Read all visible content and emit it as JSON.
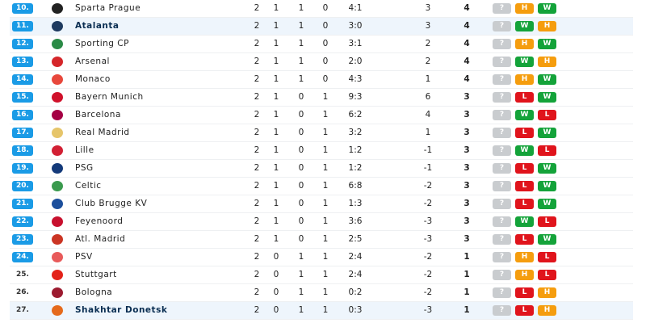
{
  "colors": {
    "rank_badge": "#1a9be6",
    "W": "#14a33a",
    "L": "#e0141c",
    "H": "#f59d0e",
    "?": "#c9cccf",
    "highlight": "#eef5fc"
  },
  "rows": [
    {
      "rank": "10.",
      "team": "Sparta Prague",
      "mp": "2",
      "w": "1",
      "d": "1",
      "l": "0",
      "goals": "4:1",
      "gd": "3",
      "pts": "4",
      "form": [
        "?",
        "H",
        "W"
      ],
      "logo": "#222222"
    },
    {
      "rank": "11.",
      "team": "Atalanta",
      "mp": "2",
      "w": "1",
      "d": "1",
      "l": "0",
      "goals": "3:0",
      "gd": "3",
      "pts": "4",
      "form": [
        "?",
        "W",
        "H"
      ],
      "logo": "#1e3a5f",
      "highlight": true
    },
    {
      "rank": "12.",
      "team": "Sporting CP",
      "mp": "2",
      "w": "1",
      "d": "1",
      "l": "0",
      "goals": "3:1",
      "gd": "2",
      "pts": "4",
      "form": [
        "?",
        "H",
        "W"
      ],
      "logo": "#2a8a46"
    },
    {
      "rank": "13.",
      "team": "Arsenal",
      "mp": "2",
      "w": "1",
      "d": "1",
      "l": "0",
      "goals": "2:0",
      "gd": "2",
      "pts": "4",
      "form": [
        "?",
        "W",
        "H"
      ],
      "logo": "#d5262a"
    },
    {
      "rank": "14.",
      "team": "Monaco",
      "mp": "2",
      "w": "1",
      "d": "1",
      "l": "0",
      "goals": "4:3",
      "gd": "1",
      "pts": "4",
      "form": [
        "?",
        "H",
        "W"
      ],
      "logo": "#e8483c"
    },
    {
      "rank": "15.",
      "team": "Bayern Munich",
      "mp": "2",
      "w": "1",
      "d": "0",
      "l": "1",
      "goals": "9:3",
      "gd": "6",
      "pts": "3",
      "form": [
        "?",
        "L",
        "W"
      ],
      "logo": "#d0112b"
    },
    {
      "rank": "16.",
      "team": "Barcelona",
      "mp": "2",
      "w": "1",
      "d": "0",
      "l": "1",
      "goals": "6:2",
      "gd": "4",
      "pts": "3",
      "form": [
        "?",
        "W",
        "L"
      ],
      "logo": "#a50044"
    },
    {
      "rank": "17.",
      "team": "Real Madrid",
      "mp": "2",
      "w": "1",
      "d": "0",
      "l": "1",
      "goals": "3:2",
      "gd": "1",
      "pts": "3",
      "form": [
        "?",
        "L",
        "W"
      ],
      "logo": "#e6c56a"
    },
    {
      "rank": "18.",
      "team": "Lille",
      "mp": "2",
      "w": "1",
      "d": "0",
      "l": "1",
      "goals": "1:2",
      "gd": "-1",
      "pts": "3",
      "form": [
        "?",
        "W",
        "L"
      ],
      "logo": "#d22034"
    },
    {
      "rank": "19.",
      "team": "PSG",
      "mp": "2",
      "w": "1",
      "d": "0",
      "l": "1",
      "goals": "1:2",
      "gd": "-1",
      "pts": "3",
      "form": [
        "?",
        "L",
        "W"
      ],
      "logo": "#143a7a"
    },
    {
      "rank": "20.",
      "team": "Celtic",
      "mp": "2",
      "w": "1",
      "d": "0",
      "l": "1",
      "goals": "6:8",
      "gd": "-2",
      "pts": "3",
      "form": [
        "?",
        "L",
        "W"
      ],
      "logo": "#3a9a4e"
    },
    {
      "rank": "21.",
      "team": "Club Brugge KV",
      "mp": "2",
      "w": "1",
      "d": "0",
      "l": "1",
      "goals": "1:3",
      "gd": "-2",
      "pts": "3",
      "form": [
        "?",
        "L",
        "W"
      ],
      "logo": "#1c4f9c"
    },
    {
      "rank": "22.",
      "team": "Feyenoord",
      "mp": "2",
      "w": "1",
      "d": "0",
      "l": "1",
      "goals": "3:6",
      "gd": "-3",
      "pts": "3",
      "form": [
        "?",
        "W",
        "L"
      ],
      "logo": "#c8102e"
    },
    {
      "rank": "23.",
      "team": "Atl. Madrid",
      "mp": "2",
      "w": "1",
      "d": "0",
      "l": "1",
      "goals": "2:5",
      "gd": "-3",
      "pts": "3",
      "form": [
        "?",
        "L",
        "W"
      ],
      "logo": "#cb3524"
    },
    {
      "rank": "24.",
      "team": "PSV",
      "mp": "2",
      "w": "0",
      "d": "1",
      "l": "1",
      "goals": "2:4",
      "gd": "-2",
      "pts": "1",
      "form": [
        "?",
        "H",
        "L"
      ],
      "logo": "#e85a5a"
    },
    {
      "rank": "25.",
      "team": "Stuttgart",
      "mp": "2",
      "w": "0",
      "d": "1",
      "l": "1",
      "goals": "2:4",
      "gd": "-2",
      "pts": "1",
      "form": [
        "?",
        "H",
        "L"
      ],
      "logo": "#e32219"
    },
    {
      "rank": "26.",
      "team": "Bologna",
      "mp": "2",
      "w": "0",
      "d": "1",
      "l": "1",
      "goals": "0:2",
      "gd": "-2",
      "pts": "1",
      "form": [
        "?",
        "L",
        "H"
      ],
      "logo": "#9c1b30"
    },
    {
      "rank": "27.",
      "team": "Shakhtar Donetsk",
      "mp": "2",
      "w": "0",
      "d": "1",
      "l": "1",
      "goals": "0:3",
      "gd": "-3",
      "pts": "1",
      "form": [
        "?",
        "L",
        "H"
      ],
      "logo": "#e56a1c",
      "highlight": true
    }
  ]
}
